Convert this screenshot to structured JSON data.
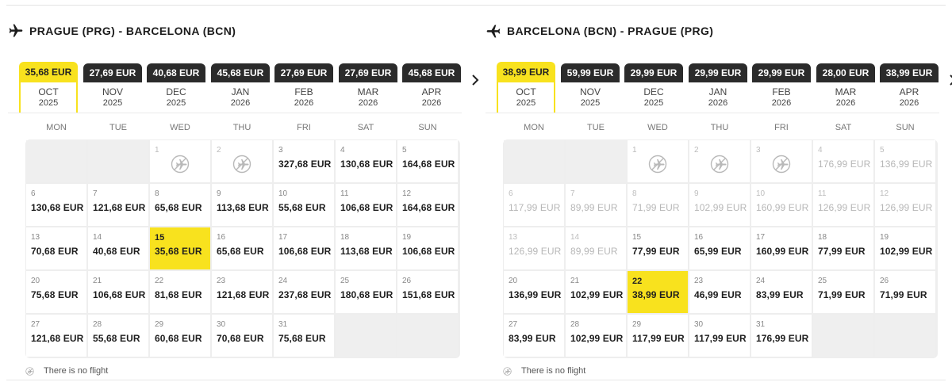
{
  "colors": {
    "accent": "#f8e21e",
    "dark_tab": "#2b2b2b",
    "dim_text": "#b7b7b7"
  },
  "weekdays": [
    "MON",
    "TUE",
    "WED",
    "THU",
    "FRI",
    "SAT",
    "SUN"
  ],
  "no_flight_label": "There is no flight",
  "icons": {
    "route": "airplane-icon",
    "next": "chevron-right-icon",
    "no_flight": "no-flight-airplane-icon"
  },
  "outbound": {
    "title": "PRAGUE (PRG) - BARCELONA (BCN)",
    "months": [
      {
        "price": "35,68 EUR",
        "month": "OCT",
        "year": "2025",
        "selected": true
      },
      {
        "price": "27,69 EUR",
        "month": "NOV",
        "year": "2025",
        "selected": false
      },
      {
        "price": "40,68 EUR",
        "month": "DEC",
        "year": "2025",
        "selected": false
      },
      {
        "price": "45,68 EUR",
        "month": "JAN",
        "year": "2026",
        "selected": false
      },
      {
        "price": "27,69 EUR",
        "month": "FEB",
        "year": "2026",
        "selected": false
      },
      {
        "price": "27,69 EUR",
        "month": "MAR",
        "year": "2026",
        "selected": false
      },
      {
        "price": "45,68 EUR",
        "month": "APR",
        "year": "2026",
        "selected": false
      }
    ],
    "leading_blanks": 2,
    "days": [
      {
        "day": "1",
        "price": "",
        "status": "noflight"
      },
      {
        "day": "2",
        "price": "",
        "status": "noflight"
      },
      {
        "day": "3",
        "price": "327,68 EUR",
        "status": "normal"
      },
      {
        "day": "4",
        "price": "130,68 EUR",
        "status": "normal"
      },
      {
        "day": "5",
        "price": "164,68 EUR",
        "status": "normal"
      },
      {
        "day": "6",
        "price": "130,68 EUR",
        "status": "normal"
      },
      {
        "day": "7",
        "price": "121,68 EUR",
        "status": "normal"
      },
      {
        "day": "8",
        "price": "65,68 EUR",
        "status": "normal"
      },
      {
        "day": "9",
        "price": "113,68 EUR",
        "status": "normal"
      },
      {
        "day": "10",
        "price": "55,68 EUR",
        "status": "normal"
      },
      {
        "day": "11",
        "price": "106,68 EUR",
        "status": "normal"
      },
      {
        "day": "12",
        "price": "164,68 EUR",
        "status": "normal"
      },
      {
        "day": "13",
        "price": "70,68 EUR",
        "status": "normal"
      },
      {
        "day": "14",
        "price": "40,68 EUR",
        "status": "normal"
      },
      {
        "day": "15",
        "price": "35,68 EUR",
        "status": "selected"
      },
      {
        "day": "16",
        "price": "65,68 EUR",
        "status": "normal"
      },
      {
        "day": "17",
        "price": "106,68 EUR",
        "status": "normal"
      },
      {
        "day": "18",
        "price": "113,68 EUR",
        "status": "normal"
      },
      {
        "day": "19",
        "price": "106,68 EUR",
        "status": "normal"
      },
      {
        "day": "20",
        "price": "75,68 EUR",
        "status": "normal"
      },
      {
        "day": "21",
        "price": "106,68 EUR",
        "status": "normal"
      },
      {
        "day": "22",
        "price": "81,68 EUR",
        "status": "normal"
      },
      {
        "day": "23",
        "price": "121,68 EUR",
        "status": "normal"
      },
      {
        "day": "24",
        "price": "237,68 EUR",
        "status": "normal"
      },
      {
        "day": "25",
        "price": "180,68 EUR",
        "status": "normal"
      },
      {
        "day": "26",
        "price": "151,68 EUR",
        "status": "normal"
      },
      {
        "day": "27",
        "price": "121,68 EUR",
        "status": "normal"
      },
      {
        "day": "28",
        "price": "55,68 EUR",
        "status": "normal"
      },
      {
        "day": "29",
        "price": "60,68 EUR",
        "status": "normal"
      },
      {
        "day": "30",
        "price": "70,68 EUR",
        "status": "normal"
      },
      {
        "day": "31",
        "price": "75,68 EUR",
        "status": "normal"
      }
    ]
  },
  "return": {
    "title": "BARCELONA (BCN) - PRAGUE (PRG)",
    "months": [
      {
        "price": "38,99 EUR",
        "month": "OCT",
        "year": "2025",
        "selected": true
      },
      {
        "price": "59,99 EUR",
        "month": "NOV",
        "year": "2025",
        "selected": false
      },
      {
        "price": "29,99 EUR",
        "month": "DEC",
        "year": "2025",
        "selected": false
      },
      {
        "price": "29,99 EUR",
        "month": "JAN",
        "year": "2026",
        "selected": false
      },
      {
        "price": "29,99 EUR",
        "month": "FEB",
        "year": "2026",
        "selected": false
      },
      {
        "price": "28,00 EUR",
        "month": "MAR",
        "year": "2026",
        "selected": false
      },
      {
        "price": "38,99 EUR",
        "month": "APR",
        "year": "2026",
        "selected": false
      }
    ],
    "leading_blanks": 2,
    "days": [
      {
        "day": "1",
        "price": "",
        "status": "noflight"
      },
      {
        "day": "2",
        "price": "",
        "status": "noflight"
      },
      {
        "day": "3",
        "price": "",
        "status": "noflight"
      },
      {
        "day": "4",
        "price": "176,99 EUR",
        "status": "dim"
      },
      {
        "day": "5",
        "price": "136,99 EUR",
        "status": "dim"
      },
      {
        "day": "6",
        "price": "117,99 EUR",
        "status": "dim"
      },
      {
        "day": "7",
        "price": "89,99 EUR",
        "status": "dim"
      },
      {
        "day": "8",
        "price": "71,99 EUR",
        "status": "dim"
      },
      {
        "day": "9",
        "price": "102,99 EUR",
        "status": "dim"
      },
      {
        "day": "10",
        "price": "160,99 EUR",
        "status": "dim"
      },
      {
        "day": "11",
        "price": "126,99 EUR",
        "status": "dim"
      },
      {
        "day": "12",
        "price": "126,99 EUR",
        "status": "dim"
      },
      {
        "day": "13",
        "price": "126,99 EUR",
        "status": "dim"
      },
      {
        "day": "14",
        "price": "89,99 EUR",
        "status": "dim"
      },
      {
        "day": "15",
        "price": "77,99 EUR",
        "status": "normal"
      },
      {
        "day": "16",
        "price": "65,99 EUR",
        "status": "normal"
      },
      {
        "day": "17",
        "price": "160,99 EUR",
        "status": "normal"
      },
      {
        "day": "18",
        "price": "77,99 EUR",
        "status": "normal"
      },
      {
        "day": "19",
        "price": "102,99 EUR",
        "status": "normal"
      },
      {
        "day": "20",
        "price": "136,99 EUR",
        "status": "normal"
      },
      {
        "day": "21",
        "price": "102,99 EUR",
        "status": "normal"
      },
      {
        "day": "22",
        "price": "38,99 EUR",
        "status": "selected"
      },
      {
        "day": "23",
        "price": "46,99 EUR",
        "status": "normal"
      },
      {
        "day": "24",
        "price": "83,99 EUR",
        "status": "normal"
      },
      {
        "day": "25",
        "price": "71,99 EUR",
        "status": "normal"
      },
      {
        "day": "26",
        "price": "71,99 EUR",
        "status": "normal"
      },
      {
        "day": "27",
        "price": "83,99 EUR",
        "status": "normal"
      },
      {
        "day": "28",
        "price": "102,99 EUR",
        "status": "normal"
      },
      {
        "day": "29",
        "price": "117,99 EUR",
        "status": "normal"
      },
      {
        "day": "30",
        "price": "117,99 EUR",
        "status": "normal"
      },
      {
        "day": "31",
        "price": "176,99 EUR",
        "status": "normal"
      }
    ]
  }
}
